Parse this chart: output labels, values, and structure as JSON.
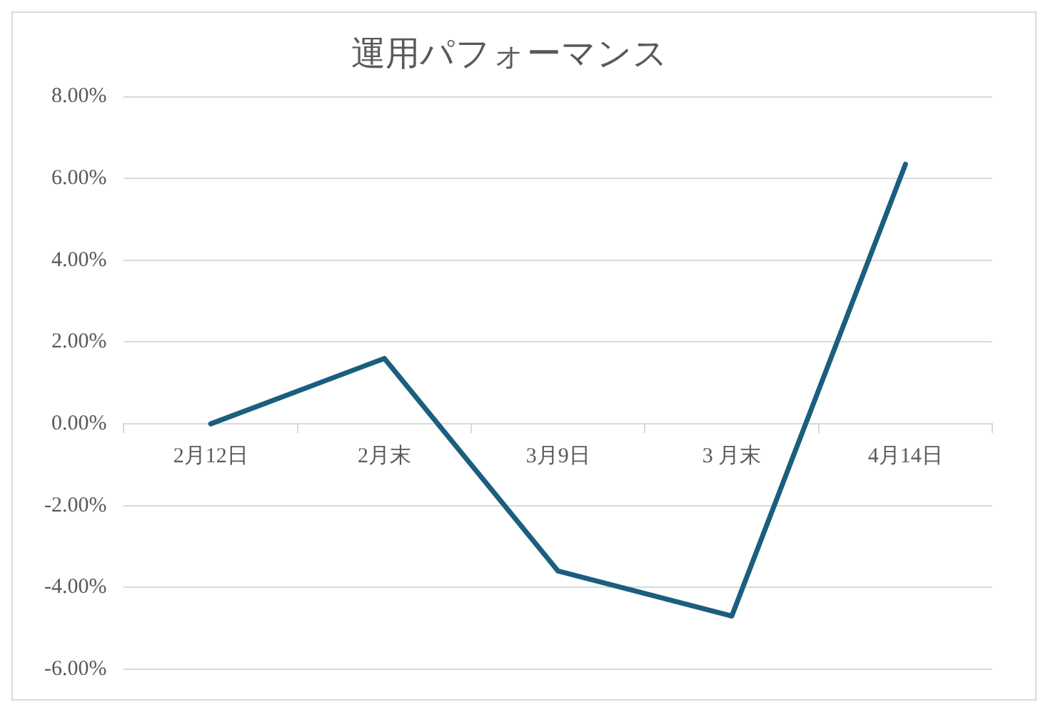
{
  "chart_data": {
    "type": "line",
    "title": "運用パフォーマンス",
    "categories": [
      "2月12日",
      "2月末",
      "3月9日",
      "3 月末",
      "4月14日"
    ],
    "series": [
      {
        "color": "#1b5e7e",
        "values": [
          0,
          1.6,
          -3.6,
          -4.7,
          6.35
        ]
      }
    ],
    "ylim": [
      -6,
      8
    ],
    "yticks": [
      {
        "value": -6,
        "label": "-6.00%"
      },
      {
        "value": -4,
        "label": "-4.00%"
      },
      {
        "value": -2,
        "label": "-2.00%"
      },
      {
        "value": 0,
        "label": "0.00%"
      },
      {
        "value": 2,
        "label": "2.00%"
      },
      {
        "value": 4,
        "label": "4.00%"
      },
      {
        "value": 6,
        "label": "6.00%"
      },
      {
        "value": 8,
        "label": "8.00%"
      }
    ],
    "grid": "y",
    "legend": false,
    "marker": "none",
    "line_style": "solid"
  }
}
